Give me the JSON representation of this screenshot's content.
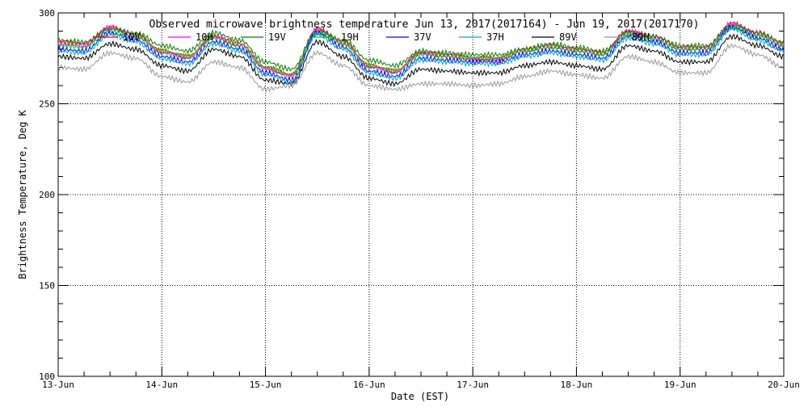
{
  "chart_data": {
    "type": "line",
    "title": "Observed microwave brightness temperature Jun 13, 2017(2017164) - Jun 19, 2017(2017170)",
    "xlabel": "Date (EST)",
    "ylabel": "Brightness Temperature, Deg K",
    "xlim": [
      "2017-06-13",
      "2017-06-20"
    ],
    "ylim": [
      100,
      300
    ],
    "x_tick_labels": [
      "13-Jun",
      "14-Jun",
      "15-Jun",
      "16-Jun",
      "17-Jun",
      "18-Jun",
      "19-Jun",
      "20-Jun"
    ],
    "y_ticks": [
      100,
      150,
      200,
      250,
      300
    ],
    "grid": true,
    "legend_placement": "top",
    "x": [
      "2017-06-13 00:00",
      "2017-06-13 06:00",
      "2017-06-13 12:00",
      "2017-06-13 18:00",
      "2017-06-14 00:00",
      "2017-06-14 06:00",
      "2017-06-14 12:00",
      "2017-06-14 18:00",
      "2017-06-15 00:00",
      "2017-06-15 06:00",
      "2017-06-15 12:00",
      "2017-06-15 18:00",
      "2017-06-16 00:00",
      "2017-06-16 06:00",
      "2017-06-16 12:00",
      "2017-06-16 18:00",
      "2017-06-17 00:00",
      "2017-06-17 06:00",
      "2017-06-17 12:00",
      "2017-06-17 18:00",
      "2017-06-18 00:00",
      "2017-06-18 06:00",
      "2017-06-18 12:00",
      "2017-06-18 18:00",
      "2017-06-19 00:00",
      "2017-06-19 06:00",
      "2017-06-19 12:00",
      "2017-06-19 18:00",
      "2017-06-20 00:00"
    ],
    "series": [
      {
        "name": "10V",
        "color": "#ff0000",
        "values": [
          284,
          283,
          292,
          288,
          279,
          276,
          287,
          283,
          270,
          266,
          291,
          284,
          271,
          268,
          278,
          277,
          275,
          275,
          280,
          282,
          280,
          278,
          290,
          287,
          281,
          281,
          294,
          289,
          283
        ]
      },
      {
        "name": "10H",
        "color": "#ff00ff",
        "values": [
          283,
          282,
          292,
          287,
          278,
          275,
          287,
          282,
          269,
          265,
          291,
          283,
          270,
          267,
          278,
          276,
          274,
          274,
          279,
          281,
          279,
          277,
          290,
          286,
          280,
          280,
          294,
          288,
          282
        ]
      },
      {
        "name": "19V",
        "color": "#008000",
        "values": [
          285,
          284,
          291,
          289,
          282,
          279,
          289,
          285,
          273,
          269,
          290,
          285,
          274,
          271,
          279,
          278,
          277,
          277,
          280,
          283,
          281,
          279,
          289,
          287,
          282,
          282,
          293,
          289,
          284
        ]
      },
      {
        "name": "19H",
        "color": "#00cc00",
        "values": [
          282,
          281,
          290,
          287,
          279,
          276,
          286,
          282,
          270,
          266,
          289,
          283,
          271,
          268,
          277,
          276,
          275,
          275,
          279,
          281,
          279,
          277,
          288,
          285,
          280,
          280,
          292,
          287,
          282
        ]
      },
      {
        "name": "37V",
        "color": "#0000ff",
        "values": [
          280,
          279,
          289,
          285,
          276,
          273,
          284,
          280,
          267,
          263,
          289,
          281,
          268,
          265,
          275,
          274,
          273,
          273,
          277,
          279,
          277,
          275,
          287,
          284,
          278,
          278,
          292,
          286,
          280
        ]
      },
      {
        "name": "37H",
        "color": "#00aacc",
        "values": [
          279,
          278,
          288,
          284,
          275,
          272,
          283,
          279,
          266,
          262,
          288,
          280,
          267,
          264,
          274,
          273,
          272,
          272,
          276,
          278,
          276,
          274,
          286,
          283,
          277,
          277,
          291,
          285,
          279
        ]
      },
      {
        "name": "89V",
        "color": "#000000",
        "values": [
          276,
          275,
          283,
          280,
          271,
          268,
          280,
          276,
          263,
          261,
          284,
          276,
          264,
          261,
          269,
          268,
          267,
          267,
          271,
          273,
          271,
          269,
          282,
          279,
          273,
          273,
          287,
          282,
          276
        ]
      },
      {
        "name": "89H",
        "color": "#999999",
        "values": [
          270,
          269,
          278,
          275,
          265,
          262,
          273,
          270,
          258,
          260,
          278,
          271,
          260,
          258,
          261,
          261,
          260,
          261,
          265,
          268,
          266,
          264,
          276,
          273,
          267,
          267,
          282,
          277,
          270
        ]
      }
    ]
  }
}
